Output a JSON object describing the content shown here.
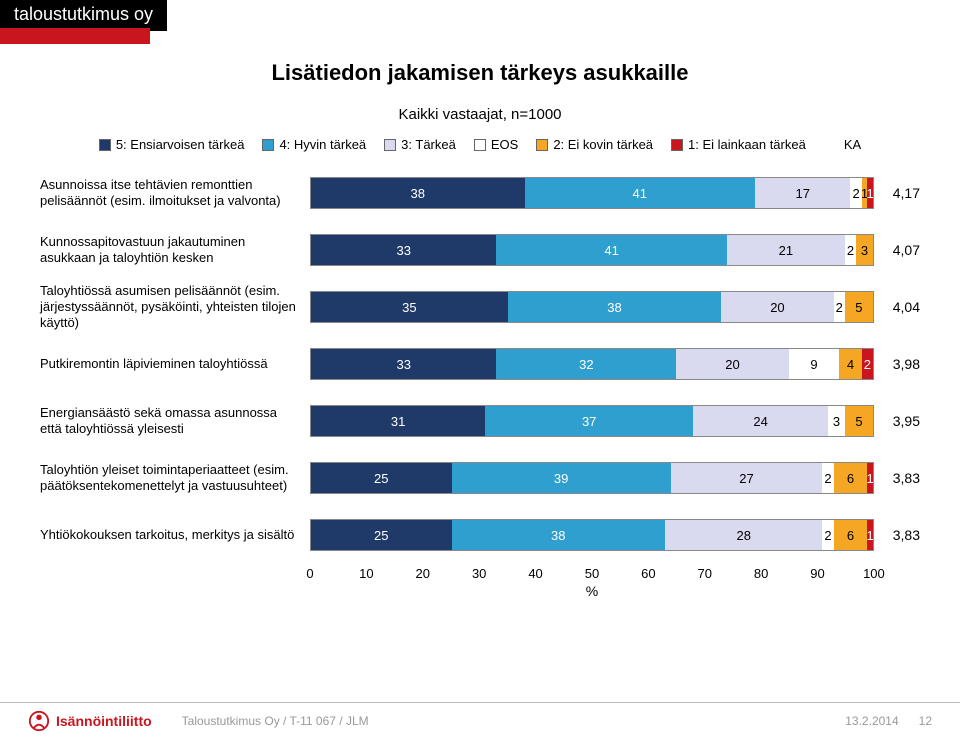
{
  "brand": "taloustutkimus oy",
  "title": "Lisätiedon jakamisen tärkeys asukkaille",
  "subtitle": "Kaikki vastaajat, n=1000",
  "legend": [
    {
      "label": "5: Ensiarvoisen tärkeä",
      "color": "#1f3a68"
    },
    {
      "label": "4: Hyvin tärkeä",
      "color": "#2f9fd0"
    },
    {
      "label": "3: Tärkeä",
      "color": "#d9d9ef"
    },
    {
      "label": "EOS",
      "color": "#ffffff"
    },
    {
      "label": "2: Ei kovin tärkeä",
      "color": "#f5a623"
    },
    {
      "label": "1: Ei lainkaan tärkeä",
      "color": "#c9151e"
    }
  ],
  "ka_label": "KA",
  "segment_text_colors": [
    "#ffffff",
    "#ffffff",
    "#000000",
    "#000000",
    "#000000",
    "#ffffff"
  ],
  "rows": [
    {
      "label": "Asunnoissa itse tehtävien remonttien pelisäännöt (esim. ilmoitukset ja valvonta)",
      "values": [
        38,
        41,
        17,
        2,
        1,
        1
      ],
      "ka": "4,17"
    },
    {
      "label": "Kunnossapitovastuun jakautuminen asukkaan ja taloyhtiön kesken",
      "values": [
        33,
        41,
        21,
        2,
        3,
        0
      ],
      "ka": "4,07"
    },
    {
      "label": "Taloyhtiössä asumisen pelisäännöt (esim. järjestyssäännöt, pysäköinti, yhteisten tilojen käyttö)",
      "values": [
        35,
        38,
        20,
        2,
        5,
        0
      ],
      "ka": "4,04"
    },
    {
      "label": "Putkiremontin läpivieminen taloyhtiössä",
      "values": [
        33,
        32,
        20,
        9,
        4,
        2
      ],
      "ka": "3,98"
    },
    {
      "label": "Energiansäästö sekä omassa asunnossa että taloyhtiössä yleisesti",
      "values": [
        31,
        37,
        24,
        3,
        5,
        0
      ],
      "ka": "3,95"
    },
    {
      "label": "Taloyhtiön yleiset toimintaperiaatteet (esim. päätöksentekomenettelyt ja vastuusuhteet)",
      "values": [
        25,
        39,
        27,
        2,
        6,
        1
      ],
      "ka": "3,83"
    },
    {
      "label": "Yhtiökokouksen tarkoitus, merkitys ja sisältö",
      "values": [
        25,
        38,
        28,
        2,
        6,
        1
      ],
      "ka": "3,83"
    }
  ],
  "x_ticks": [
    0,
    10,
    20,
    30,
    40,
    50,
    60,
    70,
    80,
    90,
    100
  ],
  "x_axis_label": "%",
  "footer": {
    "logo_text": "Isännöintiliitto",
    "credit": "Taloustutkimus Oy / T-11 067 / JLM",
    "date": "13.2.2014",
    "page": "12"
  },
  "colors": {
    "bar_border": "#888888",
    "accent_red": "#c9151e",
    "tick_color": "#000000"
  }
}
